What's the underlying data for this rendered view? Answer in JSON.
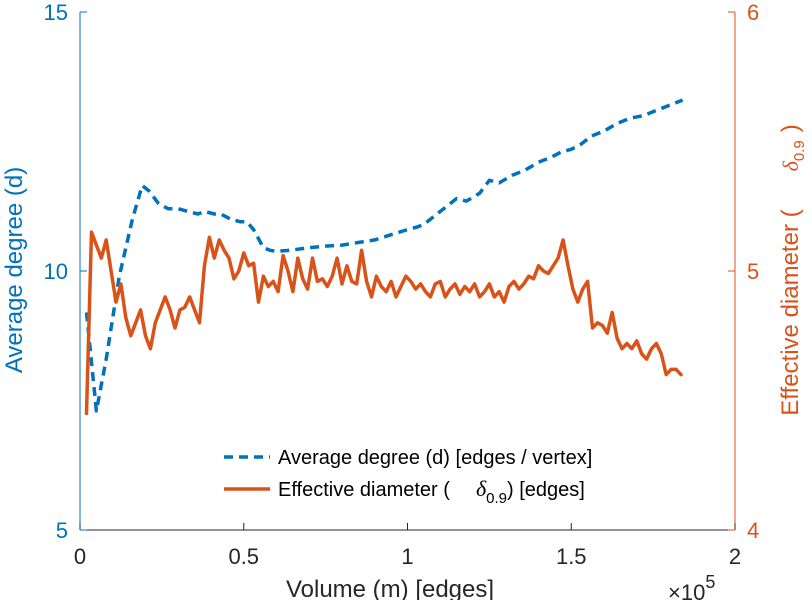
{
  "chart_data": {
    "type": "line",
    "x_axis": {
      "label": "Volume (m) [edges]",
      "ticks": [
        0,
        0.5,
        1,
        1.5,
        2
      ],
      "tick_labels": [
        "0",
        "0.5",
        "1",
        "1.5",
        "2"
      ],
      "range": [
        0,
        2
      ],
      "exponent_label": "×10",
      "exponent": "5"
    },
    "y_left": {
      "label": "Average degree (d)",
      "ticks": [
        5,
        10,
        15
      ],
      "tick_labels": [
        "5",
        "10",
        "15"
      ],
      "range": [
        5,
        15
      ],
      "color": "#0072BD"
    },
    "y_right": {
      "label": "Effective diameter (",
      "label_symbol": "δ",
      "label_subscript": "0.9",
      "label_end": ")",
      "ticks": [
        4,
        5,
        6
      ],
      "tick_labels": [
        "4",
        "5",
        "6"
      ],
      "range": [
        4,
        6
      ],
      "color": "#D95319"
    },
    "series": [
      {
        "name": "Average degree (d) [edges / vertex]",
        "axis": "left",
        "style": "dashed",
        "color": "#0072BD",
        "x": [
          0.02,
          0.05,
          0.08,
          0.12,
          0.16,
          0.19,
          0.21,
          0.24,
          0.27,
          0.3,
          0.33,
          0.36,
          0.38,
          0.41,
          0.43,
          0.46,
          0.49,
          0.51,
          0.53,
          0.56,
          0.58,
          0.6,
          0.64,
          0.7,
          0.75,
          0.8,
          0.85,
          0.9,
          0.95,
          1.0,
          1.03,
          1.05,
          1.1,
          1.15,
          1.18,
          1.22,
          1.25,
          1.28,
          1.32,
          1.36,
          1.4,
          1.44,
          1.47,
          1.5,
          1.53,
          1.56,
          1.6,
          1.64,
          1.68,
          1.72,
          1.76,
          1.8,
          1.84
        ],
        "y": [
          9.2,
          7.3,
          8.3,
          9.9,
          11.0,
          11.65,
          11.55,
          11.3,
          11.2,
          11.2,
          11.15,
          11.1,
          11.15,
          11.1,
          11.1,
          11.0,
          10.95,
          10.95,
          10.8,
          10.45,
          10.4,
          10.38,
          10.4,
          10.45,
          10.48,
          10.5,
          10.55,
          10.6,
          10.7,
          10.8,
          10.85,
          10.9,
          11.15,
          11.4,
          11.35,
          11.5,
          11.75,
          11.7,
          11.85,
          11.95,
          12.1,
          12.2,
          12.3,
          12.35,
          12.45,
          12.6,
          12.7,
          12.85,
          12.95,
          13.0,
          13.1,
          13.2,
          13.3
        ]
      },
      {
        "name": "Effective diameter (",
        "name_symbol": "δ",
        "name_subscript": "0.9",
        "name_end": ") [edges]",
        "axis": "right",
        "style": "solid",
        "color": "#D95319",
        "x": [
          0.02,
          0.035,
          0.05,
          0.065,
          0.08,
          0.095,
          0.11,
          0.125,
          0.14,
          0.155,
          0.17,
          0.185,
          0.2,
          0.215,
          0.23,
          0.245,
          0.26,
          0.275,
          0.29,
          0.305,
          0.32,
          0.335,
          0.35,
          0.365,
          0.38,
          0.395,
          0.41,
          0.425,
          0.44,
          0.455,
          0.47,
          0.485,
          0.5,
          0.515,
          0.53,
          0.545,
          0.56,
          0.575,
          0.59,
          0.605,
          0.62,
          0.635,
          0.65,
          0.665,
          0.68,
          0.695,
          0.71,
          0.725,
          0.74,
          0.755,
          0.77,
          0.785,
          0.8,
          0.815,
          0.83,
          0.845,
          0.86,
          0.875,
          0.89,
          0.905,
          0.92,
          0.935,
          0.95,
          0.965,
          0.98,
          0.995,
          1.01,
          1.025,
          1.04,
          1.055,
          1.07,
          1.085,
          1.1,
          1.115,
          1.13,
          1.145,
          1.16,
          1.175,
          1.19,
          1.205,
          1.22,
          1.235,
          1.25,
          1.265,
          1.28,
          1.295,
          1.31,
          1.325,
          1.34,
          1.355,
          1.37,
          1.385,
          1.4,
          1.415,
          1.43,
          1.445,
          1.46,
          1.475,
          1.49,
          1.505,
          1.52,
          1.535,
          1.55,
          1.565,
          1.58,
          1.595,
          1.61,
          1.625,
          1.64,
          1.655,
          1.67,
          1.685,
          1.7,
          1.715,
          1.73,
          1.745,
          1.76,
          1.775,
          1.79,
          1.805,
          1.82,
          1.835
        ],
        "y": [
          4.45,
          5.15,
          5.1,
          5.05,
          5.12,
          5.0,
          4.88,
          4.95,
          4.82,
          4.75,
          4.8,
          4.85,
          4.75,
          4.7,
          4.8,
          4.85,
          4.9,
          4.85,
          4.78,
          4.85,
          4.86,
          4.9,
          4.85,
          4.8,
          5.02,
          5.13,
          5.05,
          5.12,
          5.08,
          5.05,
          4.97,
          5.0,
          5.07,
          5.02,
          5.03,
          4.88,
          4.98,
          4.94,
          4.96,
          4.92,
          5.06,
          5.0,
          4.92,
          5.05,
          4.97,
          4.93,
          5.05,
          4.96,
          4.97,
          4.94,
          4.98,
          5.05,
          4.95,
          5.02,
          4.96,
          4.95,
          5.08,
          4.96,
          4.9,
          4.98,
          4.94,
          4.92,
          4.96,
          4.9,
          4.94,
          4.98,
          4.96,
          4.93,
          4.95,
          4.92,
          4.9,
          4.95,
          4.96,
          4.9,
          4.93,
          4.95,
          4.91,
          4.94,
          4.92,
          4.95,
          4.9,
          4.92,
          4.95,
          4.9,
          4.92,
          4.88,
          4.94,
          4.96,
          4.93,
          4.95,
          4.98,
          4.97,
          5.02,
          5.0,
          4.99,
          5.02,
          5.05,
          5.12,
          5.02,
          4.93,
          4.88,
          4.93,
          4.96,
          4.78,
          4.8,
          4.79,
          4.76,
          4.84,
          4.74,
          4.7,
          4.72,
          4.7,
          4.73,
          4.68,
          4.66,
          4.7,
          4.72,
          4.68,
          4.6,
          4.62,
          4.62,
          4.6
        ]
      }
    ],
    "legend": {
      "placement": "bottom-center"
    }
  }
}
